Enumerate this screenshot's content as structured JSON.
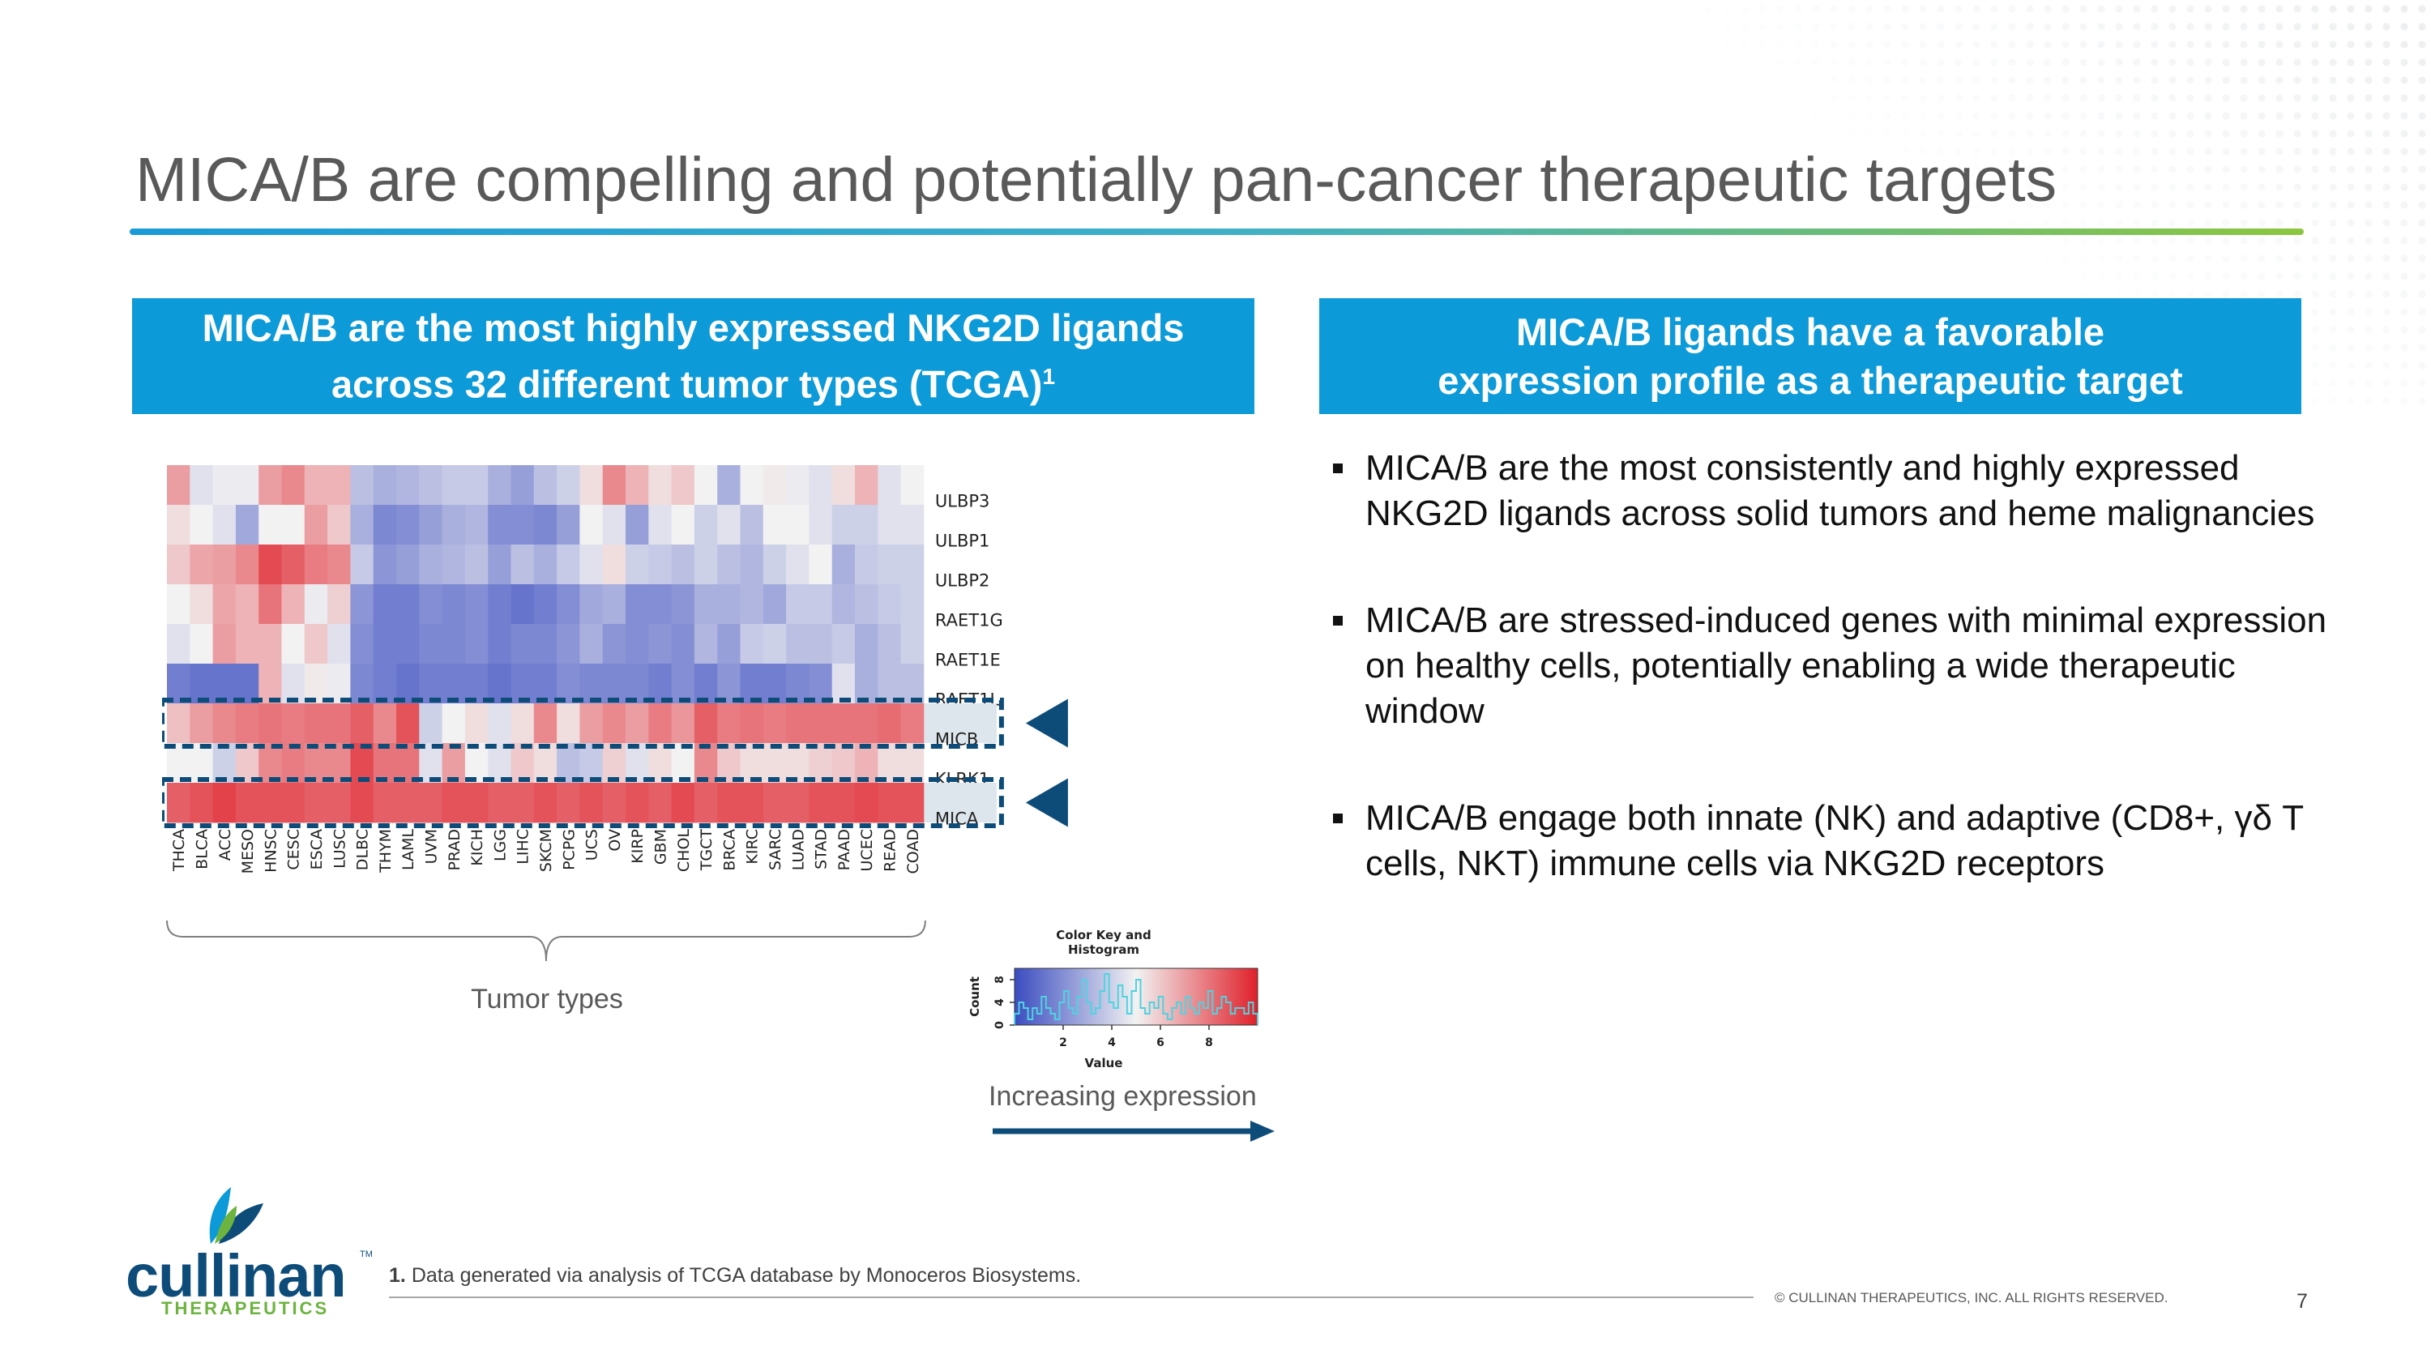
{
  "slide": {
    "title": "MICA/B are compelling and potentially pan-cancer therapeutic targets",
    "page_number": "7",
    "copyright": "© CULLINAN THERAPEUTICS, INC. ALL RIGHTS RESERVED."
  },
  "left_banner": {
    "line1": "MICA/B are the most highly expressed NKG2D ligands",
    "line2": "across 32 different tumor types (TCGA)",
    "superscript": "1"
  },
  "right_banner": {
    "line1": "MICA/B ligands have a favorable",
    "line2": "expression profile as a therapeutic target"
  },
  "bullets": [
    "MICA/B are the most consistently and highly expressed NKG2D ligands across solid tumors and heme malignancies",
    "MICA/B are stressed-induced genes with minimal expression on healthy cells, potentially enabling a wide therapeutic window",
    "MICA/B engage both innate (NK) and adaptive (CD8+, γδ T cells, NKT) immune cells via NKG2D receptors"
  ],
  "heatmap_labels": {
    "tumor_types_caption": "Tumor types",
    "increasing_expression": "Increasing expression"
  },
  "chart_data": [
    {
      "type": "heatmap",
      "title": "",
      "rows": [
        "ULBP3",
        "ULBP1",
        "ULBP2",
        "RAET1G",
        "RAET1E",
        "RAET1L",
        "MICB",
        "KLRK1",
        "MICA"
      ],
      "columns": [
        "THCA",
        "BLCA",
        "ACC",
        "MESO",
        "HNSC",
        "CESC",
        "ESCA",
        "LUSC",
        "DLBC",
        "THYM",
        "LAML",
        "UVM",
        "PRAD",
        "KICH",
        "LGG",
        "LIHC",
        "SKCM",
        "PCPG",
        "UCS",
        "OV",
        "KIRP",
        "GBM",
        "CHOL",
        "TGCT",
        "BRCA",
        "KIRC",
        "SARC",
        "LUAD",
        "STAD",
        "PAAD",
        "UCEC",
        "READ",
        "COAD"
      ],
      "highlighted_rows": [
        "MICB",
        "MICA"
      ],
      "color_scale": {
        "low": "#3b4cc0",
        "mid": "#f2f2f2",
        "high": "#e0202a",
        "min": 0,
        "max": 10
      },
      "values": [
        [
          7,
          4.5,
          4.8,
          4.8,
          7,
          7.5,
          6.5,
          6.5,
          3.5,
          3,
          3.2,
          3.5,
          3.8,
          3.8,
          3,
          2.5,
          3.5,
          4,
          5.5,
          7.5,
          6.5,
          5.5,
          6,
          5,
          3,
          5,
          5.2,
          4.8,
          4.5,
          5.5,
          6.5,
          4.5,
          5
        ],
        [
          5.5,
          5,
          4.5,
          2.8,
          5,
          5,
          7,
          6,
          3,
          1.8,
          2,
          2.5,
          3,
          3.2,
          2,
          2,
          1.8,
          2.5,
          5,
          4.5,
          2.5,
          4.5,
          5,
          4,
          4.5,
          3.5,
          5,
          5,
          4.5,
          4,
          4,
          4.5,
          4.5
        ],
        [
          6,
          6.8,
          7,
          7.5,
          9,
          8.5,
          7.8,
          7.5,
          3.8,
          2.2,
          2.5,
          3,
          3.2,
          3.5,
          2.5,
          3.5,
          3,
          3.8,
          4.5,
          5.5,
          4,
          3.8,
          3.5,
          4,
          3.5,
          3.2,
          4,
          4.5,
          5,
          3,
          3.8,
          4,
          4
        ],
        [
          5,
          5.5,
          6.8,
          6.5,
          8,
          6.5,
          4.8,
          5.8,
          2.2,
          1.5,
          1.5,
          2,
          1.8,
          2,
          1.5,
          1.2,
          1.5,
          2,
          2.8,
          3,
          2,
          2,
          2.2,
          3,
          3,
          3.2,
          2.8,
          3.8,
          3.8,
          3.2,
          3.5,
          3.8,
          4
        ],
        [
          4.5,
          5,
          7,
          6.5,
          6.5,
          5,
          6,
          4.5,
          2,
          1.5,
          1.5,
          1.8,
          1.8,
          2,
          1.5,
          1.8,
          1.8,
          2.2,
          3,
          2.2,
          2,
          2.2,
          2,
          3.2,
          2.5,
          3.8,
          4,
          3.5,
          3.5,
          3.8,
          3,
          3.5,
          4
        ],
        [
          1.5,
          1.2,
          1.2,
          1.2,
          6.5,
          4.5,
          5.2,
          4.8,
          1.8,
          1.5,
          1.2,
          1.5,
          1.5,
          1.5,
          1.2,
          1.5,
          1.5,
          2,
          1.8,
          1.8,
          1.8,
          1.5,
          2,
          1.5,
          2.2,
          1.5,
          1.5,
          1.8,
          2,
          4.5,
          3,
          3.5,
          3.5
        ],
        [
          6.2,
          7,
          7.5,
          7.8,
          8,
          7.8,
          8,
          8,
          8.5,
          7.5,
          8.8,
          4,
          5,
          5.5,
          4.5,
          5.5,
          7.5,
          5.5,
          7,
          7.5,
          7,
          7.8,
          7.2,
          8.5,
          7.8,
          8,
          7.8,
          8,
          8,
          8,
          8,
          8.2,
          7.8
        ],
        [
          5,
          5,
          4,
          6,
          7.5,
          7.8,
          7.5,
          7.5,
          9,
          8,
          8,
          4.5,
          7,
          5,
          4.5,
          6,
          5.5,
          3.5,
          3.8,
          5.8,
          4.5,
          5.5,
          5,
          7.5,
          6,
          5.5,
          5.5,
          5.5,
          5.8,
          6,
          6.5,
          5.5,
          5.5
        ],
        [
          8.5,
          8.8,
          9.2,
          8.8,
          8.8,
          8.8,
          8.5,
          8.5,
          9,
          8.5,
          8.5,
          8.5,
          8.8,
          8.8,
          8.5,
          8.5,
          8.8,
          8.5,
          8.8,
          8.5,
          8.8,
          8.5,
          9,
          8.5,
          8.8,
          8.8,
          8.5,
          8.5,
          8.8,
          8.8,
          9,
          8.8,
          8.8
        ]
      ]
    },
    {
      "type": "histogram",
      "title": "Color Key and Histogram",
      "xlabel": "Value",
      "ylabel": "Count",
      "xlim": [
        0,
        10
      ],
      "ylim": [
        0,
        10
      ],
      "x_ticks": [
        2,
        4,
        6,
        8
      ],
      "y_ticks": [
        0,
        4,
        8
      ],
      "values": [
        2,
        4,
        3,
        1,
        3,
        2,
        5,
        3,
        2,
        1,
        4,
        6,
        3,
        2,
        5,
        8,
        4,
        2,
        3,
        6,
        9,
        4,
        3,
        7,
        5,
        2,
        6,
        8,
        3,
        2,
        4,
        3,
        5,
        2,
        1,
        3,
        4,
        2,
        5,
        3,
        2,
        4,
        3,
        6,
        2,
        3,
        5,
        4,
        2,
        3,
        3,
        2,
        4,
        2
      ]
    }
  ],
  "footnote": {
    "number": "1.",
    "text": "Data generated via analysis of TCGA database by Monoceros Biosystems."
  },
  "logo": {
    "wordmark": "cullinan",
    "tm": "TM",
    "subtitle": "THERAPEUTICS"
  },
  "colors": {
    "banner": "#0c9ad8",
    "title_text": "#595959",
    "highlight_box": "#0d4c79",
    "logo_blue": "#0d4c79",
    "logo_green": "#6cb33f"
  }
}
